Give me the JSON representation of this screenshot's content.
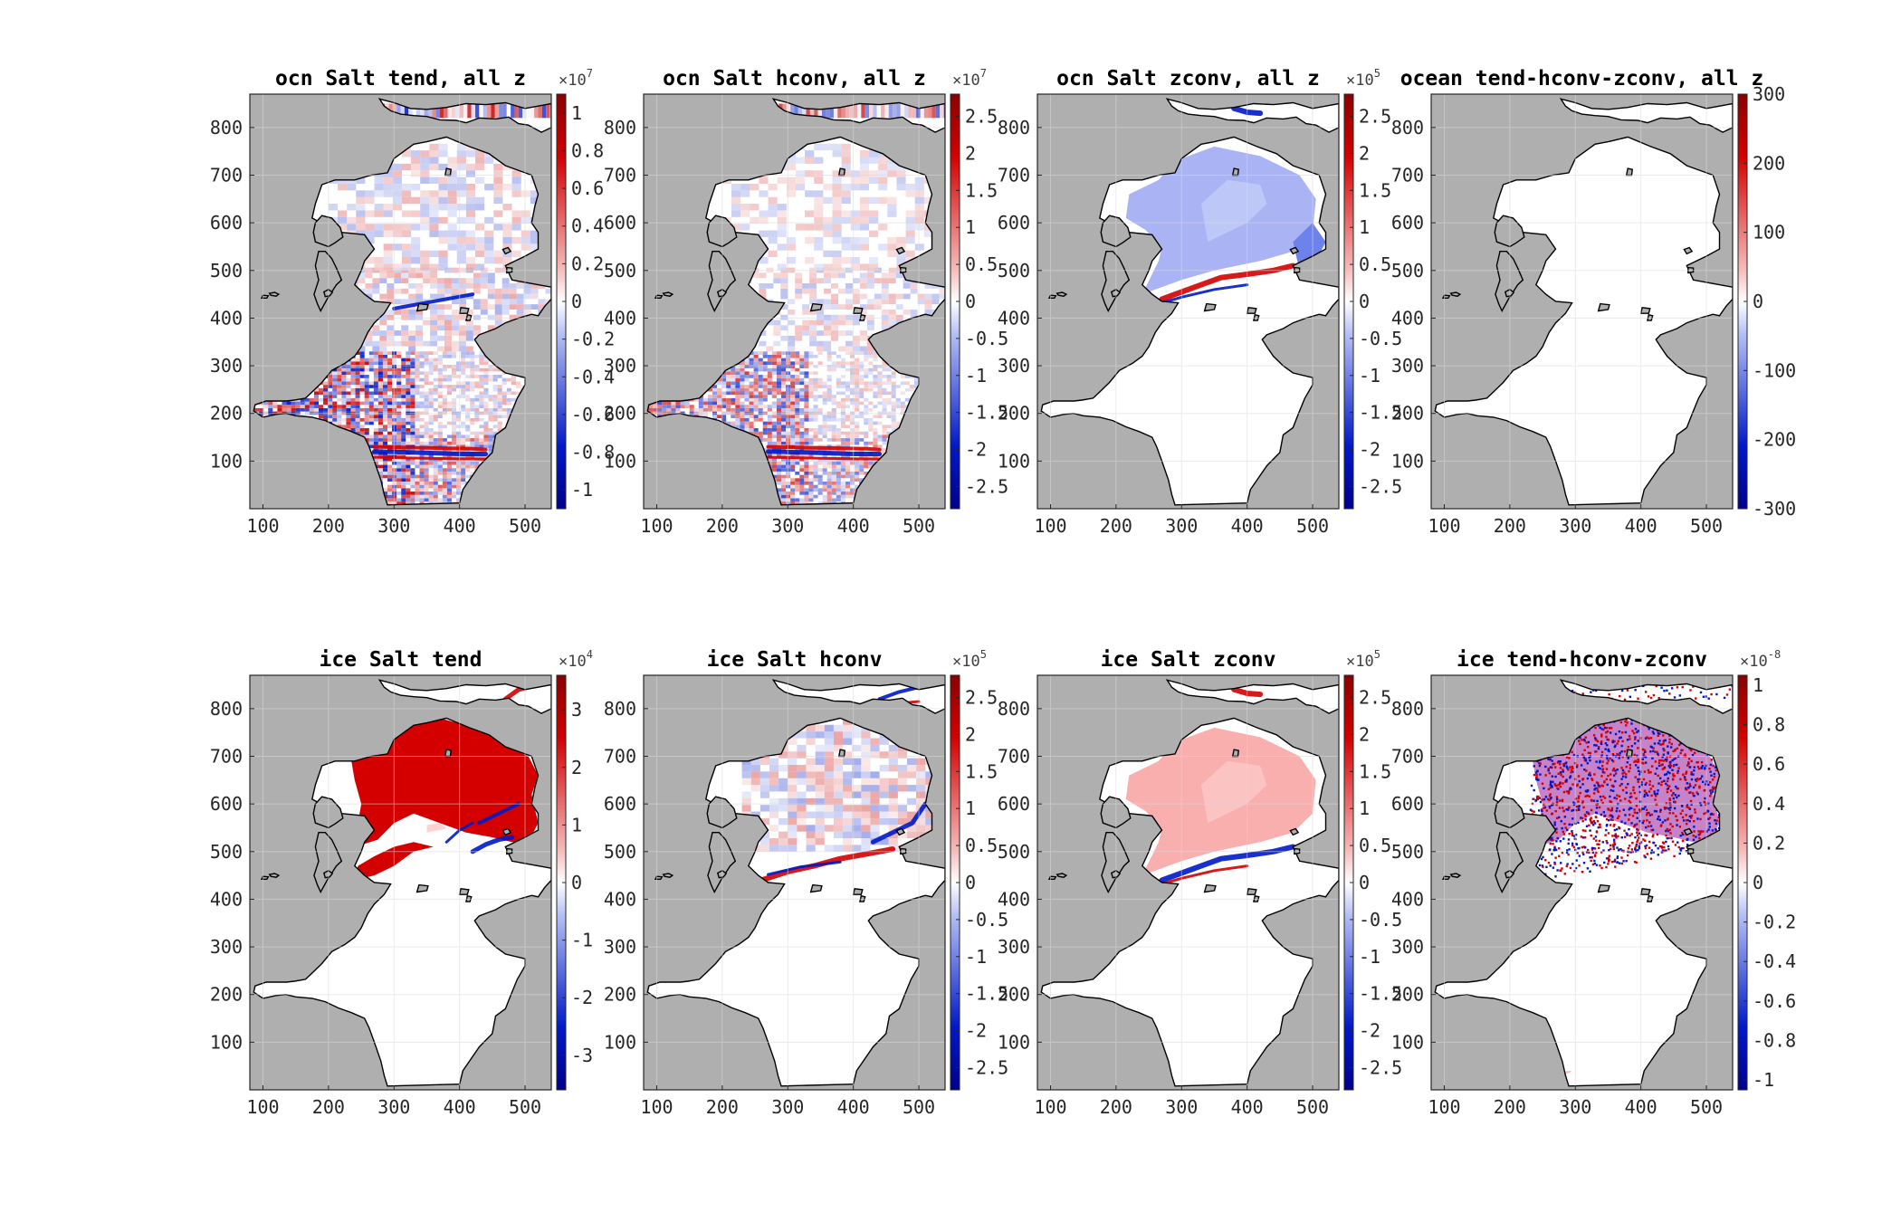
{
  "colors": {
    "land": "#afafaf",
    "ocean_zero": "#ffffff",
    "positive": "#d40000",
    "negative": "#0019c8",
    "grid": "#d9d9d9",
    "coast": "#000000"
  },
  "chart_data": [
    {
      "type": "heatmap",
      "title": "ocn Salt tend, all z",
      "xlim": [
        80,
        540
      ],
      "ylim": [
        0,
        870
      ],
      "xticks": [
        "100",
        "200",
        "300",
        "400",
        "500"
      ],
      "yticks": [
        "100",
        "200",
        "300",
        "400",
        "500",
        "600",
        "700",
        "800"
      ],
      "colorbar": {
        "ticks": [
          "-1",
          "-0.8",
          "-0.6",
          "-0.4",
          "-0.2",
          "0",
          "0.2",
          "0.4",
          "0.6",
          "0.8",
          "1"
        ],
        "range": [
          -1.1,
          1.1
        ],
        "multiplier_base": "×10",
        "multiplier_exp": "7"
      },
      "pattern": "ocn_tend",
      "grid": true
    },
    {
      "type": "heatmap",
      "title": "ocn Salt hconv, all z",
      "xlim": [
        80,
        540
      ],
      "ylim": [
        0,
        870
      ],
      "xticks": [
        "100",
        "200",
        "300",
        "400",
        "500"
      ],
      "yticks": [
        "100",
        "200",
        "300",
        "400",
        "500",
        "600",
        "700",
        "800"
      ],
      "colorbar": {
        "ticks": [
          "-2.5",
          "-2",
          "-1.5",
          "-1",
          "-0.5",
          "0",
          "0.5",
          "1",
          "1.5",
          "2",
          "2.5"
        ],
        "range": [
          -2.8,
          2.8
        ],
        "multiplier_base": "×10",
        "multiplier_exp": "7"
      },
      "pattern": "ocn_hconv",
      "grid": true
    },
    {
      "type": "heatmap",
      "title": "ocn Salt zconv, all z",
      "xlim": [
        80,
        540
      ],
      "ylim": [
        0,
        870
      ],
      "xticks": [
        "100",
        "200",
        "300",
        "400",
        "500"
      ],
      "yticks": [
        "100",
        "200",
        "300",
        "400",
        "500",
        "600",
        "700",
        "800"
      ],
      "colorbar": {
        "ticks": [
          "-2.5",
          "-2",
          "-1.5",
          "-1",
          "-0.5",
          "0",
          "0.5",
          "1",
          "1.5",
          "2",
          "2.5"
        ],
        "range": [
          -2.8,
          2.8
        ],
        "multiplier_base": "×10",
        "multiplier_exp": "5"
      },
      "pattern": "ocn_zconv",
      "grid": true
    },
    {
      "type": "heatmap",
      "title": "ocean tend-hconv-zconv, all z",
      "xlim": [
        80,
        540
      ],
      "ylim": [
        0,
        870
      ],
      "xticks": [
        "100",
        "200",
        "300",
        "400",
        "500"
      ],
      "yticks": [
        "100",
        "200",
        "300",
        "400",
        "500",
        "600",
        "700",
        "800"
      ],
      "colorbar": {
        "ticks": [
          "-300",
          "-200",
          "-100",
          "0",
          "100",
          "200",
          "300"
        ],
        "range": [
          -300,
          300
        ],
        "multiplier_base": "",
        "multiplier_exp": ""
      },
      "pattern": "ocn_resid",
      "grid": true
    },
    {
      "type": "heatmap",
      "title": "ice Salt tend",
      "xlim": [
        80,
        540
      ],
      "ylim": [
        0,
        870
      ],
      "xticks": [
        "100",
        "200",
        "300",
        "400",
        "500"
      ],
      "yticks": [
        "100",
        "200",
        "300",
        "400",
        "500",
        "600",
        "700",
        "800"
      ],
      "colorbar": {
        "ticks": [
          "-3",
          "-2",
          "-1",
          "0",
          "1",
          "2",
          "3"
        ],
        "range": [
          -3.6,
          3.6
        ],
        "multiplier_base": "×10",
        "multiplier_exp": "4"
      },
      "pattern": "ice_tend",
      "grid": true
    },
    {
      "type": "heatmap",
      "title": "ice Salt hconv",
      "xlim": [
        80,
        540
      ],
      "ylim": [
        0,
        870
      ],
      "xticks": [
        "100",
        "200",
        "300",
        "400",
        "500"
      ],
      "yticks": [
        "100",
        "200",
        "300",
        "400",
        "500",
        "600",
        "700",
        "800"
      ],
      "colorbar": {
        "ticks": [
          "-2.5",
          "-2",
          "-1.5",
          "-1",
          "-0.5",
          "0",
          "0.5",
          "1",
          "1.5",
          "2",
          "2.5"
        ],
        "range": [
          -2.8,
          2.8
        ],
        "multiplier_base": "×10",
        "multiplier_exp": "5"
      },
      "pattern": "ice_hconv",
      "grid": true
    },
    {
      "type": "heatmap",
      "title": "ice Salt zconv",
      "xlim": [
        80,
        540
      ],
      "ylim": [
        0,
        870
      ],
      "xticks": [
        "100",
        "200",
        "300",
        "400",
        "500"
      ],
      "yticks": [
        "100",
        "200",
        "300",
        "400",
        "500",
        "600",
        "700",
        "800"
      ],
      "colorbar": {
        "ticks": [
          "-2.5",
          "-2",
          "-1.5",
          "-1",
          "-0.5",
          "0",
          "0.5",
          "1",
          "1.5",
          "2",
          "2.5"
        ],
        "range": [
          -2.8,
          2.8
        ],
        "multiplier_base": "×10",
        "multiplier_exp": "5"
      },
      "pattern": "ice_zconv",
      "grid": true
    },
    {
      "type": "heatmap",
      "title": "ice tend-hconv-zconv",
      "xlim": [
        80,
        540
      ],
      "ylim": [
        0,
        870
      ],
      "xticks": [
        "100",
        "200",
        "300",
        "400",
        "500"
      ],
      "yticks": [
        "100",
        "200",
        "300",
        "400",
        "500",
        "600",
        "700",
        "800"
      ],
      "colorbar": {
        "ticks": [
          "-1",
          "-0.8",
          "-0.6",
          "-0.4",
          "-0.2",
          "0",
          "0.2",
          "0.4",
          "0.6",
          "0.8",
          "1"
        ],
        "range": [
          -1.05,
          1.05
        ],
        "multiplier_base": "×10",
        "multiplier_exp": "-8"
      },
      "pattern": "ice_resid",
      "grid": true
    }
  ]
}
